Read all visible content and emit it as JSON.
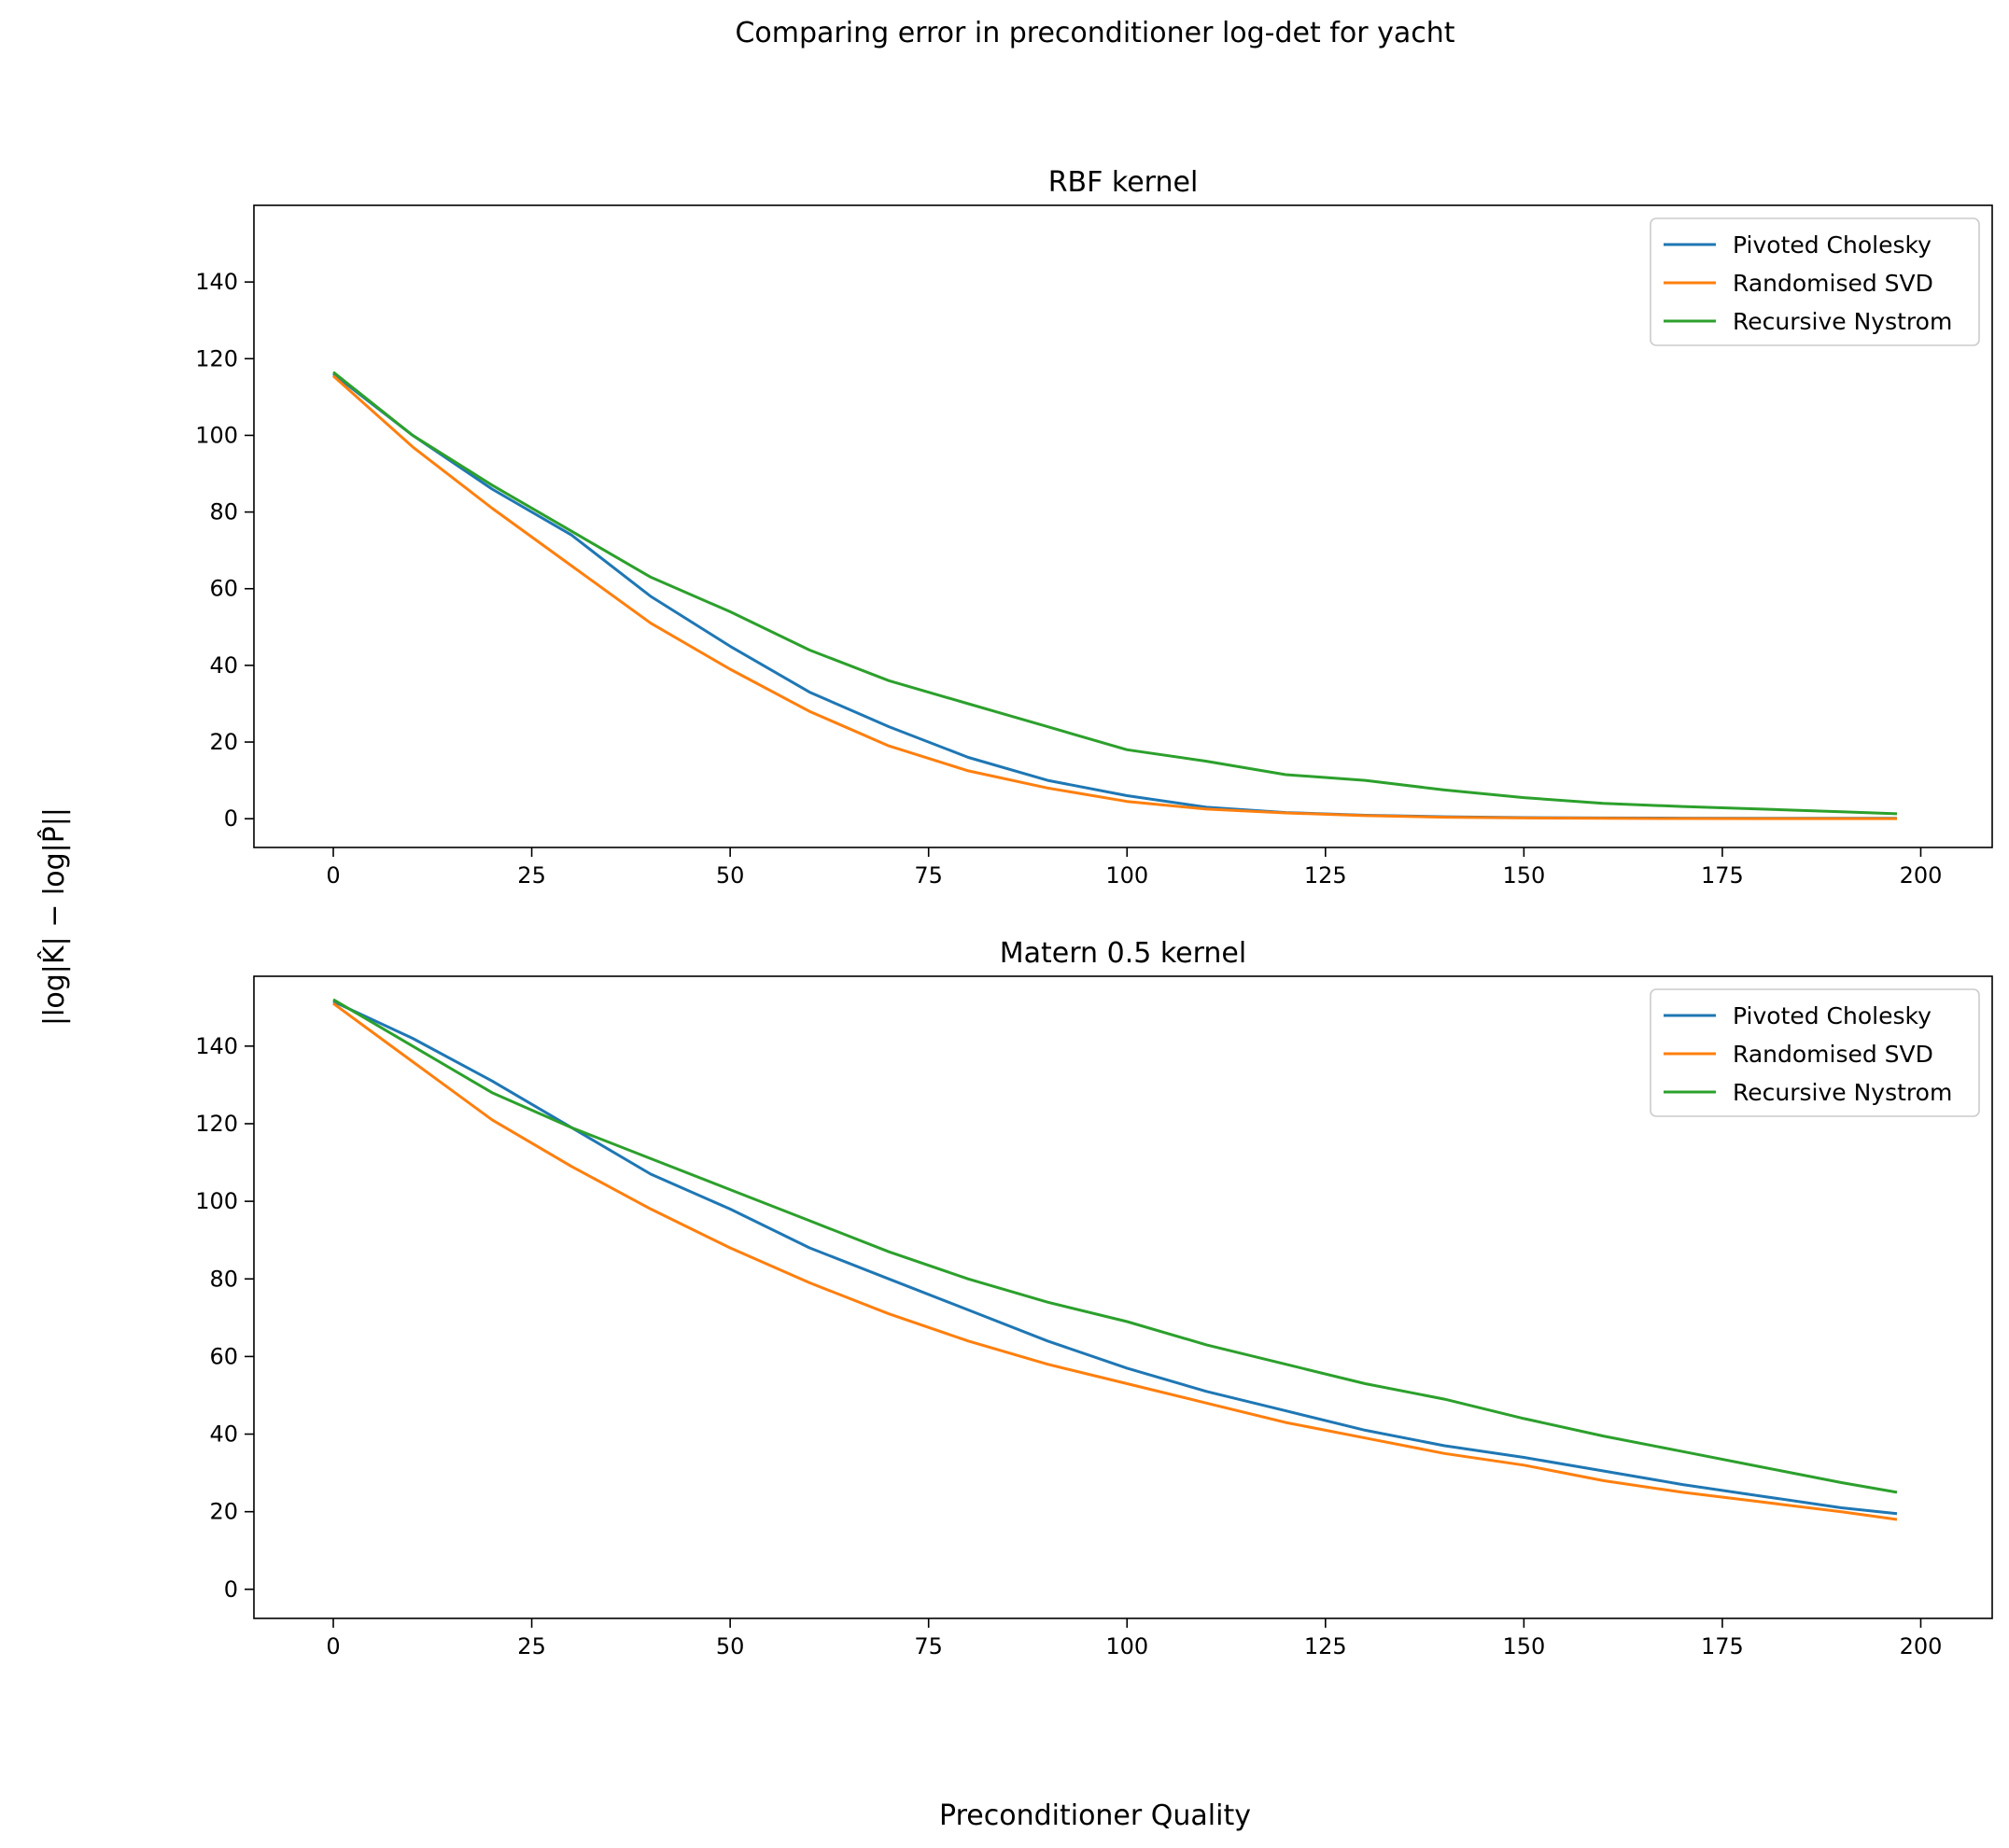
{
  "figure": {
    "suptitle": "Comparing error in preconditioner log-det for yacht",
    "xlabel": "Preconditioner Quality",
    "ylabel": "|log|K̂| − log|P̂||"
  },
  "colors": {
    "Pivoted Cholesky": "#1f77b4",
    "Randomised SVD": "#ff7f0e",
    "Recursive Nystrom": "#2ca02c"
  },
  "chart_data": [
    {
      "type": "line",
      "title": "RBF kernel",
      "xlim": [
        -10,
        209
      ],
      "ylim": [
        -7.5,
        160
      ],
      "xticks": [
        0,
        25,
        50,
        75,
        100,
        125,
        150,
        175,
        200
      ],
      "yticks": [
        0,
        20,
        40,
        60,
        80,
        100,
        120,
        140
      ],
      "legend": "top-right",
      "series": [
        {
          "name": "Pivoted Cholesky",
          "x": [
            0,
            10,
            20,
            30,
            40,
            50,
            60,
            70,
            80,
            90,
            100,
            110,
            120,
            130,
            140,
            150,
            160,
            170,
            180,
            190,
            197
          ],
          "y": [
            116,
            100,
            86,
            74,
            58,
            45,
            33,
            24,
            16,
            10,
            6,
            3,
            1.6,
            0.9,
            0.5,
            0.3,
            0.2,
            0.15,
            0.1,
            0.1,
            0.1
          ]
        },
        {
          "name": "Randomised SVD",
          "x": [
            0,
            10,
            20,
            30,
            40,
            50,
            60,
            70,
            80,
            90,
            100,
            110,
            120,
            130,
            140,
            150,
            160,
            170,
            180,
            190,
            197
          ],
          "y": [
            115.5,
            97,
            81,
            66,
            51,
            39,
            28,
            19,
            12.5,
            8,
            4.5,
            2.5,
            1.5,
            0.8,
            0.4,
            0.2,
            0.1,
            0.05,
            0.03,
            0.02,
            0.02
          ]
        },
        {
          "name": "Recursive Nystrom",
          "x": [
            0,
            10,
            20,
            30,
            40,
            50,
            60,
            70,
            80,
            90,
            100,
            110,
            120,
            130,
            140,
            150,
            160,
            170,
            180,
            190,
            197
          ],
          "y": [
            116.5,
            100,
            87,
            75,
            63,
            54,
            44,
            36,
            30,
            24,
            18,
            15,
            11.5,
            10,
            7.5,
            5.5,
            4,
            3.2,
            2.5,
            1.8,
            1.3
          ]
        }
      ]
    },
    {
      "type": "line",
      "title": "Matern 0.5 kernel",
      "xlim": [
        -10,
        209
      ],
      "ylim": [
        -7.5,
        158
      ],
      "xticks": [
        0,
        25,
        50,
        75,
        100,
        125,
        150,
        175,
        200
      ],
      "yticks": [
        0,
        20,
        40,
        60,
        80,
        100,
        120,
        140
      ],
      "legend": "top-right",
      "series": [
        {
          "name": "Pivoted Cholesky",
          "x": [
            0,
            10,
            20,
            30,
            40,
            50,
            60,
            70,
            80,
            90,
            100,
            110,
            120,
            130,
            140,
            150,
            160,
            170,
            180,
            190,
            197
          ],
          "y": [
            151.5,
            142,
            131,
            119,
            107,
            98,
            88,
            80,
            72,
            64,
            57,
            51,
            46,
            41,
            37,
            34,
            30.5,
            27,
            24,
            21,
            19.5
          ]
        },
        {
          "name": "Randomised SVD",
          "x": [
            0,
            10,
            20,
            30,
            40,
            50,
            60,
            70,
            80,
            90,
            100,
            110,
            120,
            130,
            140,
            150,
            160,
            170,
            180,
            190,
            197
          ],
          "y": [
            151,
            136,
            121,
            109,
            98,
            88,
            79,
            71,
            64,
            58,
            53,
            48,
            43,
            39,
            35,
            32,
            28,
            25,
            22.5,
            20,
            18
          ]
        },
        {
          "name": "Recursive Nystrom",
          "x": [
            0,
            10,
            20,
            30,
            40,
            50,
            60,
            70,
            80,
            90,
            100,
            110,
            120,
            130,
            140,
            150,
            160,
            170,
            180,
            190,
            197
          ],
          "y": [
            152,
            140,
            128,
            119,
            111,
            103,
            95,
            87,
            80,
            74,
            69,
            63,
            58,
            53,
            49,
            44,
            39.5,
            35.5,
            31.5,
            27.5,
            25
          ]
        }
      ]
    }
  ]
}
